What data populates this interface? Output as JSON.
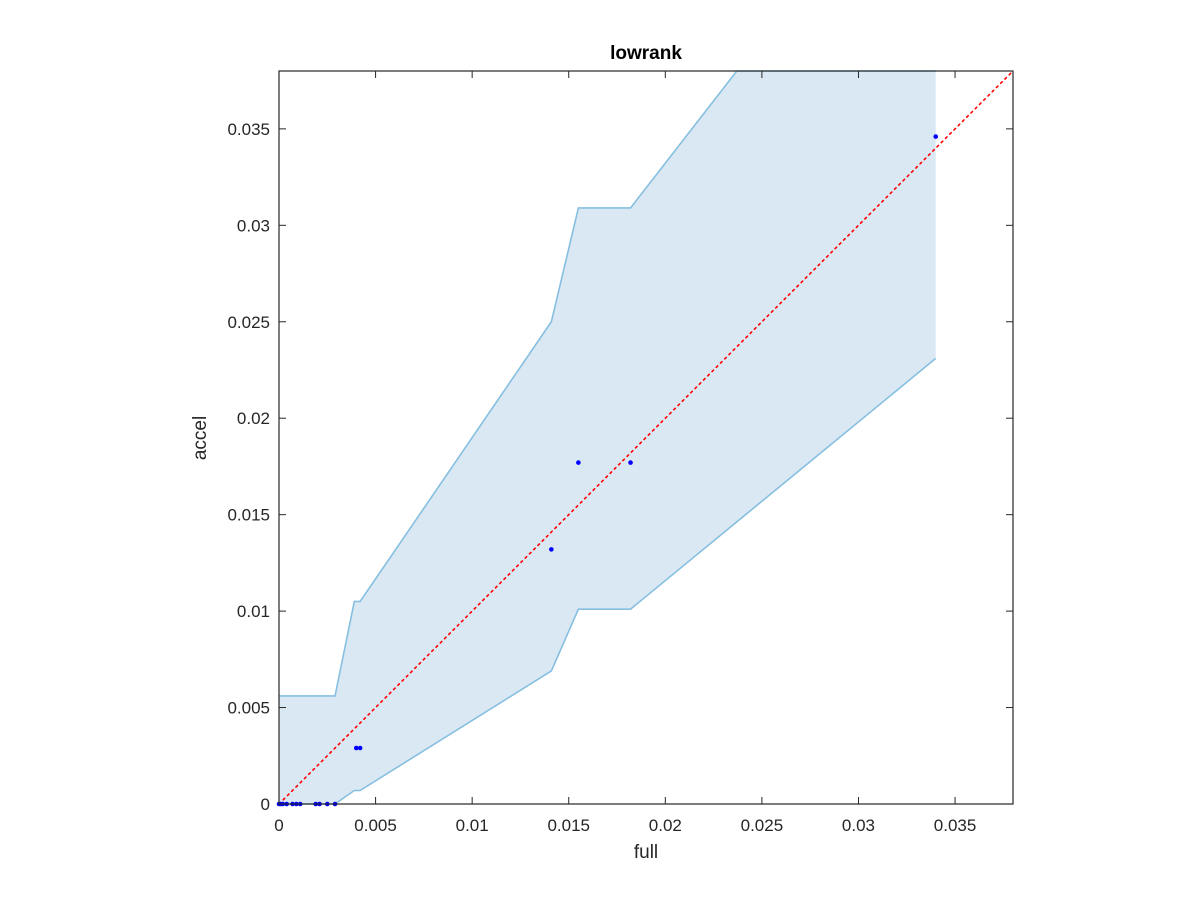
{
  "chart_data": {
    "type": "scatter",
    "title": "lowrank",
    "xlabel": "full",
    "ylabel": "accel",
    "xlim": [
      0,
      0.038
    ],
    "ylim": [
      0,
      0.038
    ],
    "x_ticks": [
      0,
      0.005,
      0.01,
      0.015,
      0.02,
      0.025,
      0.03,
      0.035
    ],
    "x_tick_labels": [
      "0",
      "0.005",
      "0.01",
      "0.015",
      "0.02",
      "0.025",
      "0.03",
      "0.035"
    ],
    "y_ticks": [
      0,
      0.005,
      0.01,
      0.015,
      0.02,
      0.025,
      0.03,
      0.035
    ],
    "y_tick_labels": [
      "0",
      "0.005",
      "0.01",
      "0.015",
      "0.02",
      "0.025",
      "0.03",
      "0.035"
    ],
    "grid": false,
    "box": true,
    "series": [
      {
        "type": "scatter",
        "color": "#0000ff",
        "points": [
          {
            "x": 0.0,
            "y": 0.0
          },
          {
            "x": 0.0001,
            "y": 0.0
          },
          {
            "x": 0.0002,
            "y": 0.0
          },
          {
            "x": 0.0004,
            "y": 0.0
          },
          {
            "x": 0.0007,
            "y": 0.0
          },
          {
            "x": 0.0009,
            "y": 0.0
          },
          {
            "x": 0.0011,
            "y": 0.0
          },
          {
            "x": 0.0019,
            "y": 0.0
          },
          {
            "x": 0.0021,
            "y": 0.0
          },
          {
            "x": 0.0025,
            "y": 0.0
          },
          {
            "x": 0.0029,
            "y": 0.0
          },
          {
            "x": 0.004,
            "y": 0.0029
          },
          {
            "x": 0.0042,
            "y": 0.0029
          },
          {
            "x": 0.0141,
            "y": 0.0132
          },
          {
            "x": 0.0155,
            "y": 0.0177
          },
          {
            "x": 0.0182,
            "y": 0.0177
          },
          {
            "x": 0.034,
            "y": 0.0346
          }
        ]
      },
      {
        "type": "line",
        "style": "dotted",
        "color": "#ff0000",
        "points": [
          {
            "x": 0,
            "y": 0
          },
          {
            "x": 0.038,
            "y": 0.038
          }
        ]
      },
      {
        "type": "area",
        "fill": "#dae8f4",
        "stroke": "#86bfe0",
        "upper": [
          {
            "x": 0.0,
            "y": 0.0056
          },
          {
            "x": 0.0029,
            "y": 0.0056
          },
          {
            "x": 0.0039,
            "y": 0.0105
          },
          {
            "x": 0.0042,
            "y": 0.0105
          },
          {
            "x": 0.0141,
            "y": 0.025
          },
          {
            "x": 0.0155,
            "y": 0.0309
          },
          {
            "x": 0.0182,
            "y": 0.0309
          },
          {
            "x": 0.0237,
            "y": 0.038
          },
          {
            "x": 0.034,
            "y": 0.038
          }
        ],
        "lower": [
          {
            "x": 0.0,
            "y": 0.0
          },
          {
            "x": 0.0029,
            "y": 0.0
          },
          {
            "x": 0.0039,
            "y": 0.0007
          },
          {
            "x": 0.0042,
            "y": 0.0007
          },
          {
            "x": 0.0141,
            "y": 0.0069
          },
          {
            "x": 0.0155,
            "y": 0.0101
          },
          {
            "x": 0.0182,
            "y": 0.0101
          },
          {
            "x": 0.034,
            "y": 0.0231
          }
        ]
      }
    ]
  }
}
